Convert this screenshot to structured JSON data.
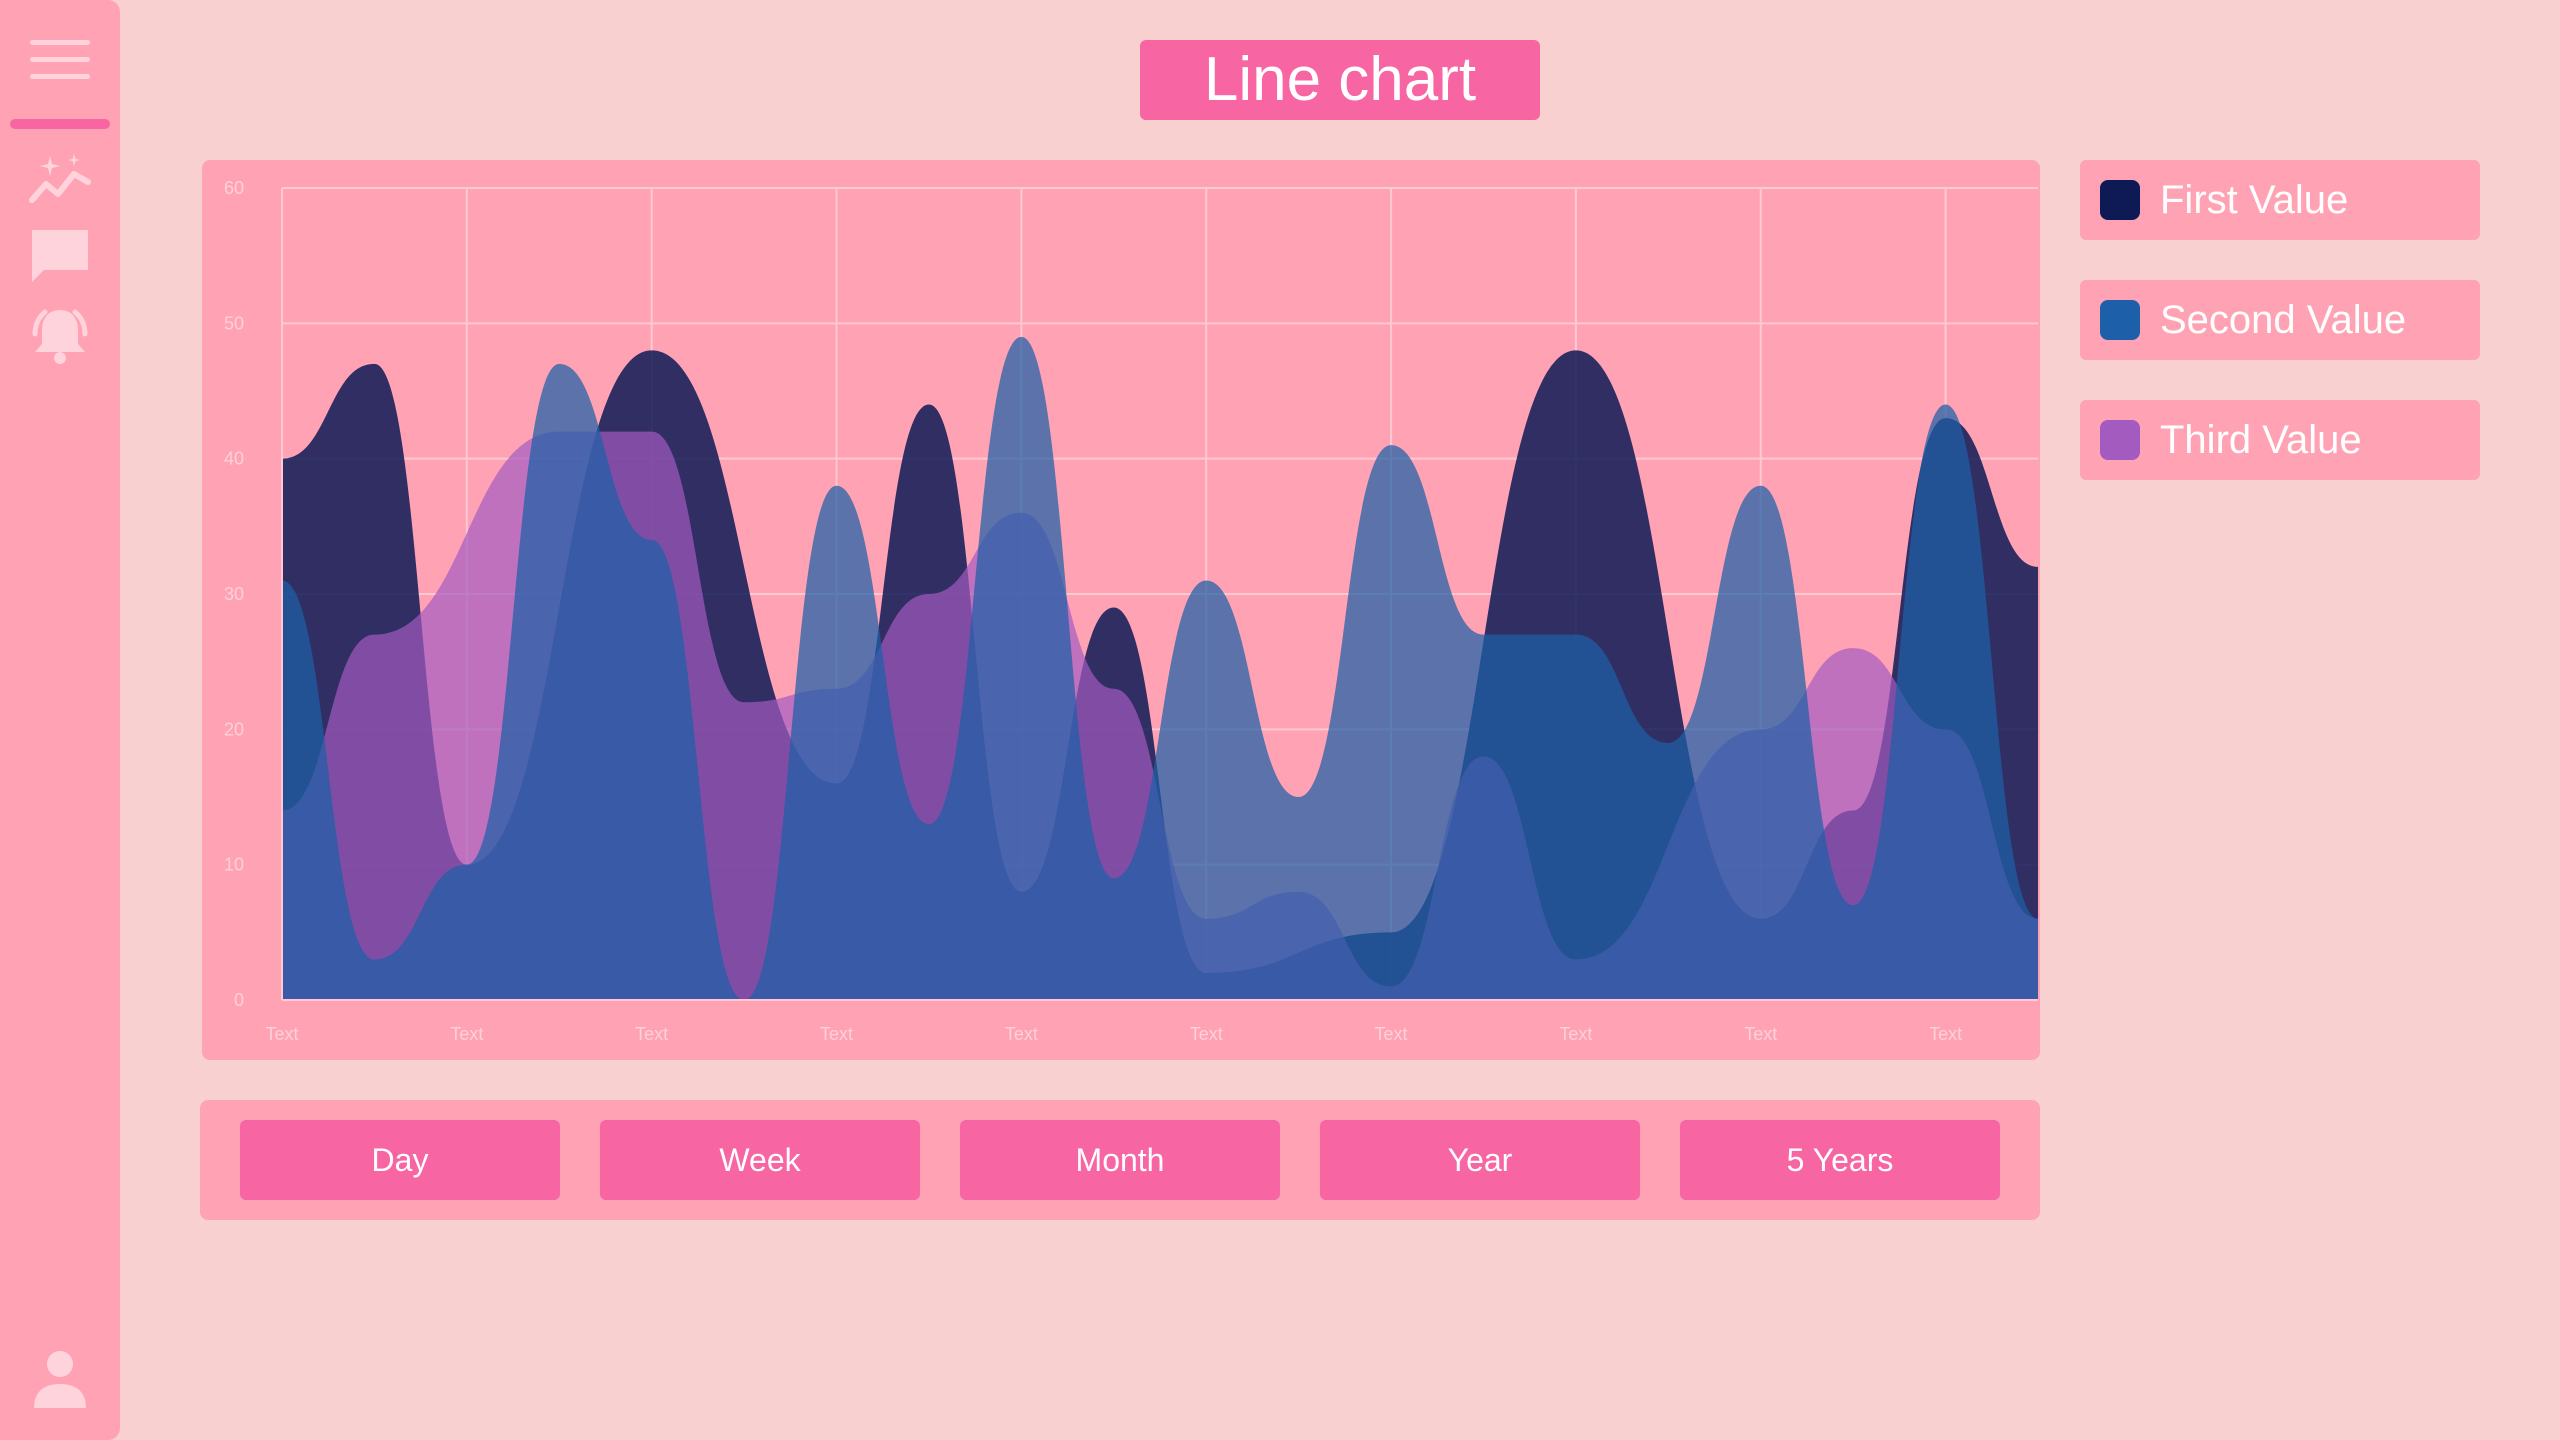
{
  "header": {
    "title": "Line chart"
  },
  "sidebar": {
    "items": [
      {
        "icon": "menu-icon"
      },
      {
        "icon": "analytics-icon"
      },
      {
        "icon": "chat-icon"
      },
      {
        "icon": "alarm-icon"
      },
      {
        "icon": "user-icon"
      }
    ]
  },
  "legend": {
    "items": [
      {
        "label": "First Value",
        "color": "#0d1a55"
      },
      {
        "label": "Second Value",
        "color": "#1d5fa8"
      },
      {
        "label": "Third Value",
        "color": "#a45bc0"
      }
    ]
  },
  "range_buttons": [
    "Day",
    "Week",
    "Month",
    "Year",
    "5 Years"
  ],
  "colors": {
    "accent": "#f765a3",
    "panel": "#ffa3b4",
    "background": "#f9d0d0"
  },
  "chart_data": {
    "type": "area",
    "categories": [
      "Text",
      "Text",
      "Text",
      "Text",
      "Text",
      "Text",
      "Text",
      "Text",
      "Text",
      "Text"
    ],
    "y_ticks": [
      "0",
      "10",
      "20",
      "30",
      "40",
      "50",
      "60"
    ],
    "ylim": [
      0,
      60
    ],
    "grid": true,
    "legend_position": "right",
    "series": [
      {
        "name": "First Value",
        "color": "#0d1a55",
        "points": [
          [
            0,
            40
          ],
          [
            0.5,
            47
          ],
          [
            1.0,
            10
          ],
          [
            2.0,
            48
          ],
          [
            3.0,
            16
          ],
          [
            3.5,
            44
          ],
          [
            4.0,
            8
          ],
          [
            4.5,
            29
          ],
          [
            5.0,
            2
          ],
          [
            6.0,
            5
          ],
          [
            7.0,
            48
          ],
          [
            8.0,
            6
          ],
          [
            8.5,
            14
          ],
          [
            9.0,
            43
          ],
          [
            9.5,
            32
          ]
        ]
      },
      {
        "name": "Second Value",
        "color": "#1d5fa8",
        "points": [
          [
            0,
            31
          ],
          [
            0.5,
            3
          ],
          [
            1.0,
            10
          ],
          [
            1.5,
            47
          ],
          [
            2.0,
            34
          ],
          [
            2.5,
            0
          ],
          [
            3.0,
            38
          ],
          [
            3.5,
            13
          ],
          [
            4.0,
            49
          ],
          [
            4.5,
            9
          ],
          [
            5.0,
            31
          ],
          [
            5.5,
            15
          ],
          [
            6.0,
            41
          ],
          [
            6.5,
            27
          ],
          [
            7.0,
            27
          ],
          [
            7.5,
            19
          ],
          [
            8.0,
            38
          ],
          [
            8.5,
            7
          ],
          [
            9.0,
            44
          ],
          [
            9.5,
            6
          ]
        ]
      },
      {
        "name": "Third Value",
        "color": "#a45bc0",
        "points": [
          [
            0,
            14
          ],
          [
            0.5,
            27
          ],
          [
            1.5,
            42
          ],
          [
            2.0,
            42
          ],
          [
            2.5,
            22
          ],
          [
            3.0,
            23
          ],
          [
            3.5,
            30
          ],
          [
            4.0,
            36
          ],
          [
            4.5,
            23
          ],
          [
            5.0,
            6
          ],
          [
            5.5,
            8
          ],
          [
            6.0,
            1
          ],
          [
            6.5,
            18
          ],
          [
            7.0,
            3
          ],
          [
            8.0,
            20
          ],
          [
            8.5,
            26
          ],
          [
            9.0,
            20
          ],
          [
            9.5,
            6
          ]
        ]
      }
    ]
  }
}
